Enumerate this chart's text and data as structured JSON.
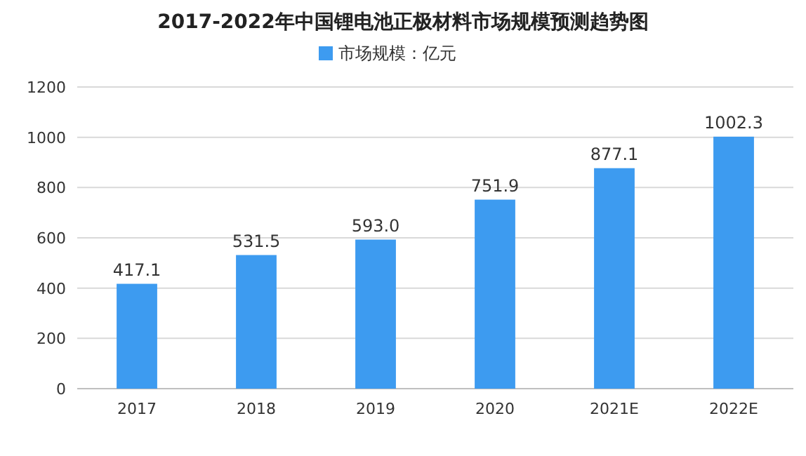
{
  "chart_data": {
    "type": "bar",
    "title": "2017-2022年中国锂电池正极材料市场规模预测趋势图",
    "categories": [
      "2017",
      "2018",
      "2019",
      "2020",
      "2021E",
      "2022E"
    ],
    "series": [
      {
        "name": "市场规模：亿元",
        "color": "#3d9bf0",
        "values": [
          417.1,
          531.5,
          593.0,
          751.9,
          877.1,
          1002.3
        ],
        "value_labels": [
          "417.1",
          "531.5",
          "593.0",
          "751.9",
          "877.1",
          "1002.3"
        ]
      }
    ],
    "ylim": [
      0,
      1200
    ],
    "yticks": [
      0,
      200,
      400,
      600,
      800,
      1000,
      1200
    ],
    "grid": "y",
    "legend": "top"
  }
}
